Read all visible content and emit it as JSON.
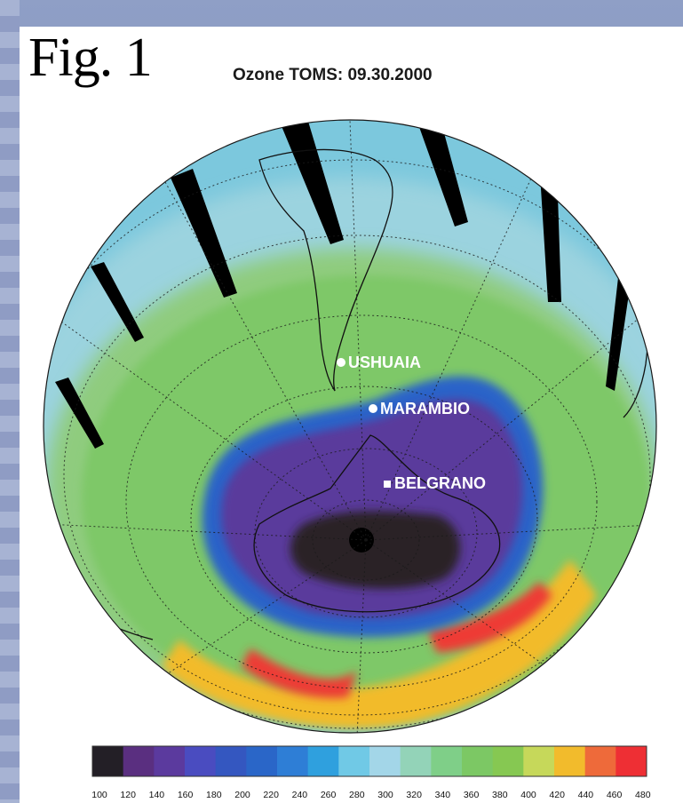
{
  "figure_label": "Fig. 1",
  "title": "Ozone TOMS: 09.30.2000",
  "stations": [
    {
      "name": "USHUAIA"
    },
    {
      "name": "MARAMBIO"
    },
    {
      "name": "BELGRANO"
    }
  ],
  "colorbar": {
    "ticks": [
      "100",
      "120",
      "140",
      "160",
      "180",
      "200",
      "220",
      "240",
      "260",
      "280",
      "300",
      "320",
      "340",
      "360",
      "380",
      "400",
      "420",
      "440",
      "460",
      "480"
    ],
    "colors": [
      "#231f26",
      "#5a2f80",
      "#5b3a9e",
      "#4a4cc0",
      "#3457c0",
      "#2a66c8",
      "#2e7ed6",
      "#2fa0de",
      "#70c9e6",
      "#a3d6e8",
      "#93d3b8",
      "#7fcf88",
      "#7cc864",
      "#86c852",
      "#c6d85a",
      "#f2bb2c",
      "#ee6a3a",
      "#ee2f34"
    ]
  }
}
